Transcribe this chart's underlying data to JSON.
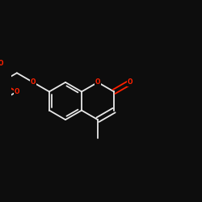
{
  "bg_color": "#0d0d0d",
  "bond_color": "#e8e8e8",
  "oxygen_color": "#ff2000",
  "lw": 1.3,
  "doff": 0.035,
  "r": 0.26,
  "fig_size": [
    2.5,
    2.5
  ],
  "dpi": 100,
  "xlim": [
    -1.3,
    1.35
  ],
  "ylim": [
    -0.7,
    0.7
  ]
}
